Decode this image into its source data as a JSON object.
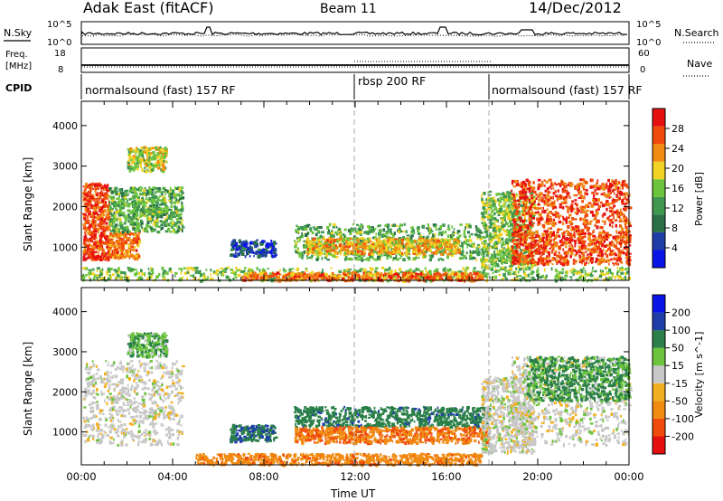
{
  "header": {
    "station": "Adak East (fitACF)",
    "beam": "Beam 11",
    "date": "14/Dec/2012"
  },
  "top_panels": {
    "nsky_label": "N.Sky",
    "nsky_ticks": [
      "10^5",
      "10^0"
    ],
    "nsearch_label": "N.Search",
    "nsearch_ticks": [
      "10^5",
      "10^0"
    ],
    "freq_label_line1": "Freq.",
    "freq_label_line2": "[MHz]",
    "freq_ticks": [
      "18",
      "8"
    ],
    "nave_label": "Nave",
    "nave_ticks": [
      "60",
      "0"
    ],
    "cpid_label": "CPID",
    "cpid_segments": [
      {
        "label": "normalsound (fast) 157 RF",
        "start_hour": 0,
        "end_hour": 12
      },
      {
        "label": "rbsp 200 RF",
        "start_hour": 12,
        "end_hour": 18
      },
      {
        "label": "normalsound (fast) 157 RF",
        "start_hour": 18,
        "end_hour": 24
      }
    ]
  },
  "colors": {
    "power_scale": [
      "#0a14e6",
      "#1f3fa8",
      "#2a7048",
      "#3f9850",
      "#6cc43c",
      "#f0d224",
      "#f08a10",
      "#f04a0c",
      "#e61010"
    ],
    "velocity_scale": [
      "#0a14e6",
      "#1f3fa8",
      "#2a8048",
      "#6cc43c",
      "#c8c8c8",
      "#f0b020",
      "#f08a10",
      "#f04a0c",
      "#e61010"
    ],
    "gray_scatter": "#c8c8c8"
  },
  "chart_data": [
    {
      "type": "heatmap",
      "name": "power",
      "ylabel": "Slant Range [km]",
      "xlim": [
        0,
        24
      ],
      "ylim": [
        180,
        4600
      ],
      "yticks": [
        "1000",
        "2000",
        "3000",
        "4000"
      ],
      "colorbar_label": "Power [dB]",
      "colorbar_ticks": [
        "4",
        "8",
        "12",
        "16",
        "20",
        "24",
        "28"
      ],
      "colorbar_range": [
        0,
        32
      ],
      "regions": [
        {
          "x": [
            0.05,
            1.2
          ],
          "y": [
            700,
            2600
          ],
          "value": 27
        },
        {
          "x": [
            1.2,
            2.5
          ],
          "y": [
            750,
            1400
          ],
          "value": 24
        },
        {
          "x": [
            1.2,
            4.4
          ],
          "y": [
            1400,
            2500
          ],
          "value": 14
        },
        {
          "x": [
            2.0,
            3.7
          ],
          "y": [
            2900,
            3500
          ],
          "value": 18
        },
        {
          "x": [
            6.5,
            8.5
          ],
          "y": [
            800,
            1200
          ],
          "value": 6
        },
        {
          "x": [
            9.3,
            17.8
          ],
          "y": [
            700,
            1600
          ],
          "value": 14
        },
        {
          "x": [
            9.8,
            16.5
          ],
          "y": [
            850,
            1250
          ],
          "value": 21
        },
        {
          "x": [
            17.5,
            19.8
          ],
          "y": [
            500,
            2400
          ],
          "value": 16
        },
        {
          "x": [
            18.8,
            24
          ],
          "y": [
            600,
            1400
          ],
          "value": 27
        },
        {
          "x": [
            18.8,
            24
          ],
          "y": [
            1400,
            2700
          ],
          "value": 27
        },
        {
          "x": [
            0,
            24
          ],
          "y": [
            200,
            520
          ],
          "value": 16
        },
        {
          "x": [
            7.0,
            17.5
          ],
          "y": [
            200,
            400
          ],
          "value": 25
        }
      ]
    },
    {
      "type": "heatmap",
      "name": "velocity",
      "ylabel": "Slant Range [km]",
      "xlabel": "Time UT",
      "xlim": [
        0,
        24
      ],
      "xticks": [
        "00:00",
        "04:00",
        "08:00",
        "12:00",
        "16:00",
        "20:00",
        "00:00"
      ],
      "ylim": [
        180,
        4600
      ],
      "yticks": [
        "1000",
        "2000",
        "3000",
        "4000"
      ],
      "colorbar_label": "Velocity [m s^-1]",
      "colorbar_ticks": [
        "200",
        "100",
        "50",
        "15",
        "-15",
        "-50",
        "-100",
        "-200"
      ],
      "regions": [
        {
          "x": [
            0.05,
            4.4
          ],
          "y": [
            700,
            2800
          ],
          "value": 0
        },
        {
          "x": [
            2.0,
            3.7
          ],
          "y": [
            2900,
            3500
          ],
          "value": 30
        },
        {
          "x": [
            6.5,
            8.5
          ],
          "y": [
            800,
            1200
          ],
          "value": 70
        },
        {
          "x": [
            9.3,
            17.8
          ],
          "y": [
            1150,
            1650
          ],
          "value": 60
        },
        {
          "x": [
            9.3,
            17.8
          ],
          "y": [
            750,
            1150
          ],
          "value": -70
        },
        {
          "x": [
            17.5,
            19.8
          ],
          "y": [
            500,
            2400
          ],
          "value": 0
        },
        {
          "x": [
            18.8,
            24
          ],
          "y": [
            700,
            2900
          ],
          "value": 0
        },
        {
          "x": [
            19.5,
            24
          ],
          "y": [
            1800,
            2900
          ],
          "value": 40
        },
        {
          "x": [
            5.0,
            17.5
          ],
          "y": [
            200,
            480
          ],
          "value": -60
        }
      ]
    }
  ]
}
